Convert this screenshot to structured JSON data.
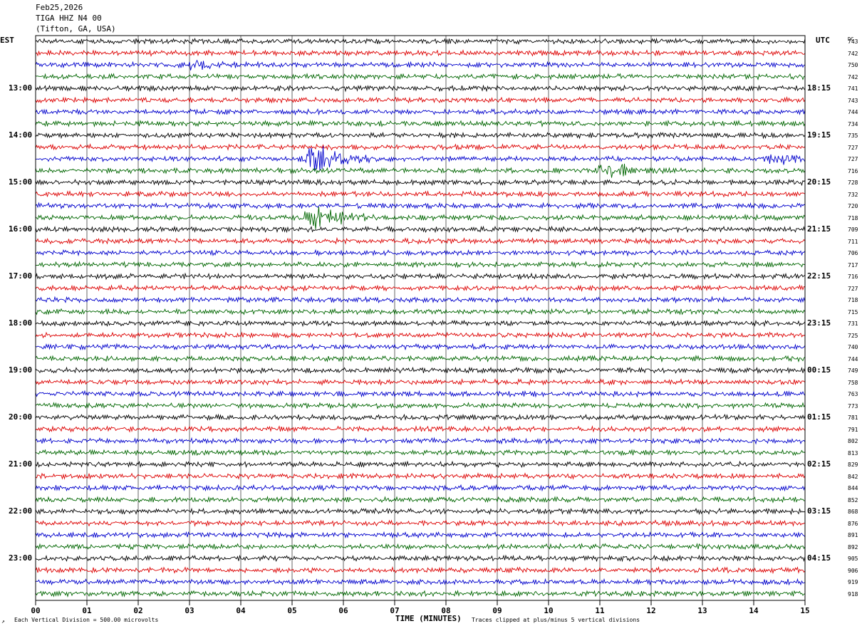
{
  "header": {
    "date": "Feb25,2026",
    "station": "TIGA HHZ N4 00",
    "location": "(Tifton, GA, USA)"
  },
  "left_label": "EST",
  "right_label": "UTC",
  "dc_label": "DC",
  "footer": {
    "vertical_division": "Each Vertical Division =  500.00 microvolts",
    "xlabel": "TIME (MINUTES)",
    "clip_note": "Traces clipped at plus/minus 5 vertical divisions",
    "corner_mark": "↗"
  },
  "chart_data": {
    "type": "line",
    "title": "TIGA HHZ N4 00",
    "xlabel": "TIME (MINUTES)",
    "xlim": [
      0,
      15
    ],
    "x_ticks": [
      "00",
      "01",
      "02",
      "03",
      "04",
      "05",
      "06",
      "07",
      "08",
      "09",
      "10",
      "11",
      "12",
      "13",
      "14",
      "15"
    ],
    "grid": true,
    "trace_colors": [
      "#000000",
      "#dd0000",
      "#0000cc",
      "#006600"
    ],
    "est_hours": [
      "13:00",
      "14:00",
      "15:00",
      "16:00",
      "17:00",
      "18:00",
      "19:00",
      "20:00",
      "21:00",
      "22:00",
      "23:00"
    ],
    "utc_hours": [
      "18:15",
      "19:15",
      "20:15",
      "21:15",
      "22:15",
      "23:15",
      "00:15",
      "01:15",
      "02:15",
      "03:15",
      "04:15"
    ],
    "dc_offsets": [
      743,
      742,
      750,
      742,
      741,
      743,
      744,
      734,
      735,
      727,
      727,
      716,
      728,
      732,
      720,
      718,
      709,
      711,
      706,
      717,
      716,
      727,
      718,
      715,
      731,
      725,
      740,
      744,
      749,
      758,
      763,
      773,
      781,
      791,
      802,
      813,
      829,
      842,
      844,
      852,
      868,
      876,
      891,
      892,
      905,
      906,
      919,
      918
    ],
    "events": [
      {
        "trace": 10,
        "minute": 5.5,
        "strength": 5
      },
      {
        "trace": 11,
        "minute": 11.2,
        "strength": 3
      },
      {
        "trace": 15,
        "minute": 5.5,
        "strength": 4
      },
      {
        "trace": 10,
        "minute": 14.5,
        "strength": 1.5
      },
      {
        "trace": 2,
        "minute": 3.1,
        "strength": 1.2
      }
    ]
  }
}
